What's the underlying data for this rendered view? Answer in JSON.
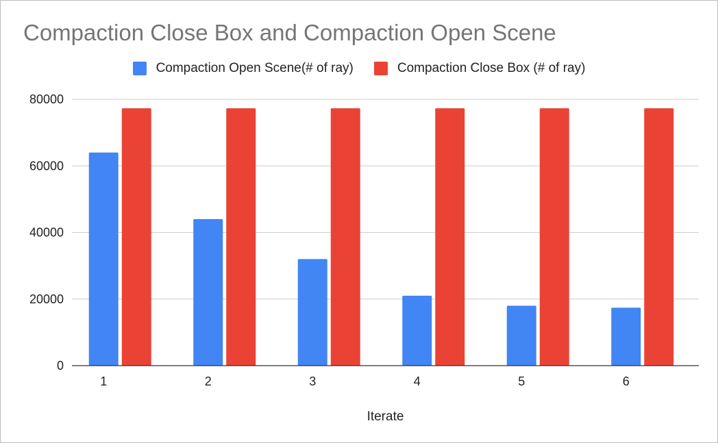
{
  "chart_data": {
    "type": "bar",
    "title": "Compaction Close Box and Compaction Open Scene",
    "xlabel": "Iterate",
    "ylabel": "",
    "categories": [
      "1",
      "2",
      "3",
      "4",
      "5",
      "6"
    ],
    "ylim": [
      0,
      80000
    ],
    "yticks": [
      0,
      20000,
      40000,
      60000,
      80000
    ],
    "grid": true,
    "legend_position": "top",
    "series": [
      {
        "name": "Compaction Open Scene(# of ray)",
        "color": "#4285f4",
        "values": [
          64000,
          44000,
          32000,
          21000,
          18000,
          17400
        ]
      },
      {
        "name": "Compaction Close Box (# of ray)",
        "color": "#ea4335",
        "values": [
          77300,
          77300,
          77300,
          77300,
          77300,
          77300
        ]
      }
    ]
  }
}
